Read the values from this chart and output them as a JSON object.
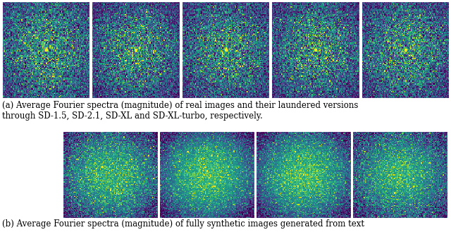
{
  "caption_a": "(a) Average Fourier spectra (magnitude) of real images and their laundered versions\nthrough SD-1.5, SD-2.1, SD-XL and SD-XL-turbo, respectively.",
  "caption_b": "(b) Average Fourier spectra (magnitude) of fully synthetic images generated from text",
  "row_a_count": 5,
  "row_b_count": 4,
  "bg_color": "#ffffff",
  "caption_fontsize": 8.5,
  "fig_width": 6.4,
  "fig_height": 3.36
}
